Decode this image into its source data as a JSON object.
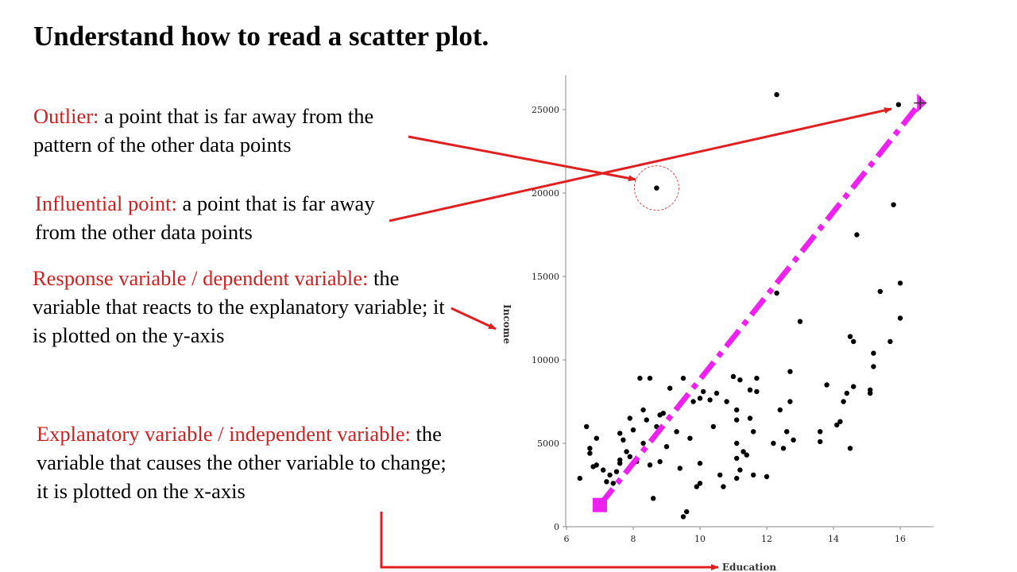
{
  "title": "Understand how to read a scatter plot.",
  "definitions": {
    "outlier": {
      "term": "Outlier:",
      "text": " a point that is far away from the pattern of the other data points"
    },
    "influential": {
      "term": "Influential point:",
      "text": " a point that is far away from the other data points"
    },
    "response": {
      "term": "Response variable / dependent variable:",
      "text": " the variable that reacts to the explanatory variable; it is plotted on the y-axis"
    },
    "explanatory": {
      "term": "Explanatory variable / independent variable:",
      "text": " the variable that causes the other variable to change; it is plotted on the x-axis"
    }
  },
  "colors": {
    "term": "#cc2222",
    "arrow": "#e02020",
    "trend": "#ee22ee",
    "points": "#000000",
    "outlier_circle": "#e05050"
  },
  "chart_data": {
    "type": "scatter",
    "xlabel": "Education",
    "ylabel": "Income",
    "xlim": [
      6,
      17
    ],
    "ylim": [
      0,
      26500
    ],
    "xticks": [
      6,
      8,
      10,
      12,
      14,
      16
    ],
    "yticks": [
      0,
      5000,
      10000,
      15000,
      20000,
      25000
    ],
    "grid": false,
    "outlier_point": [
      8.7,
      20300
    ],
    "influential_point": [
      15.95,
      25300
    ],
    "trend_line": {
      "from": [
        7.0,
        1300
      ],
      "to": [
        16.6,
        25400
      ],
      "style": "dash-dot"
    },
    "points": [
      [
        6.4,
        2900
      ],
      [
        6.6,
        6000
      ],
      [
        6.7,
        4700
      ],
      [
        6.7,
        4400
      ],
      [
        6.8,
        3600
      ],
      [
        6.9,
        3700
      ],
      [
        6.9,
        5300
      ],
      [
        7.0,
        1300
      ],
      [
        7.1,
        3400
      ],
      [
        7.2,
        2700
      ],
      [
        7.3,
        3100
      ],
      [
        7.4,
        2600
      ],
      [
        7.5,
        3300
      ],
      [
        7.6,
        4000
      ],
      [
        7.6,
        3800
      ],
      [
        7.6,
        5600
      ],
      [
        7.7,
        5200
      ],
      [
        7.8,
        4500
      ],
      [
        7.9,
        4200
      ],
      [
        7.9,
        6500
      ],
      [
        8.0,
        5800
      ],
      [
        8.1,
        3900
      ],
      [
        8.2,
        8900
      ],
      [
        8.3,
        5000
      ],
      [
        8.3,
        7000
      ],
      [
        8.4,
        6400
      ],
      [
        8.5,
        8900
      ],
      [
        8.5,
        3700
      ],
      [
        8.6,
        1700
      ],
      [
        8.7,
        6000
      ],
      [
        8.8,
        3900
      ],
      [
        8.8,
        6700
      ],
      [
        8.9,
        6800
      ],
      [
        9.0,
        4800
      ],
      [
        9.1,
        8300
      ],
      [
        9.3,
        5700
      ],
      [
        9.4,
        3500
      ],
      [
        9.5,
        600
      ],
      [
        9.5,
        8900
      ],
      [
        9.6,
        900
      ],
      [
        9.7,
        5300
      ],
      [
        9.8,
        7500
      ],
      [
        9.9,
        2400
      ],
      [
        10.0,
        2600
      ],
      [
        10.0,
        3800
      ],
      [
        10.0,
        7700
      ],
      [
        10.1,
        8100
      ],
      [
        10.3,
        7600
      ],
      [
        10.4,
        6000
      ],
      [
        10.5,
        8000
      ],
      [
        10.6,
        3100
      ],
      [
        10.7,
        2400
      ],
      [
        10.8,
        7500
      ],
      [
        11.0,
        9000
      ],
      [
        11.1,
        2900
      ],
      [
        11.1,
        4100
      ],
      [
        11.1,
        5000
      ],
      [
        11.1,
        6400
      ],
      [
        11.1,
        7000
      ],
      [
        11.2,
        3400
      ],
      [
        11.2,
        8800
      ],
      [
        11.3,
        4500
      ],
      [
        11.4,
        4300
      ],
      [
        11.5,
        6500
      ],
      [
        11.5,
        8200
      ],
      [
        11.6,
        3100
      ],
      [
        11.6,
        5700
      ],
      [
        11.7,
        8100
      ],
      [
        11.7,
        8900
      ],
      [
        12.0,
        3000
      ],
      [
        12.2,
        5000
      ],
      [
        12.3,
        14000
      ],
      [
        12.3,
        25900
      ],
      [
        12.4,
        7000
      ],
      [
        12.5,
        4700
      ],
      [
        12.6,
        5700
      ],
      [
        12.7,
        7500
      ],
      [
        12.7,
        9300
      ],
      [
        12.8,
        5200
      ],
      [
        13.0,
        12300
      ],
      [
        13.6,
        5100
      ],
      [
        13.6,
        5700
      ],
      [
        13.8,
        8500
      ],
      [
        14.1,
        6100
      ],
      [
        14.2,
        6300
      ],
      [
        14.3,
        7500
      ],
      [
        14.4,
        8000
      ],
      [
        14.5,
        4700
      ],
      [
        14.5,
        11400
      ],
      [
        14.6,
        8400
      ],
      [
        14.6,
        11100
      ],
      [
        14.7,
        17500
      ],
      [
        15.1,
        8200
      ],
      [
        15.1,
        8000
      ],
      [
        15.2,
        9600
      ],
      [
        15.2,
        10400
      ],
      [
        15.4,
        14100
      ],
      [
        15.7,
        11100
      ],
      [
        15.8,
        19300
      ],
      [
        16.0,
        12500
      ],
      [
        16.0,
        14600
      ]
    ]
  }
}
